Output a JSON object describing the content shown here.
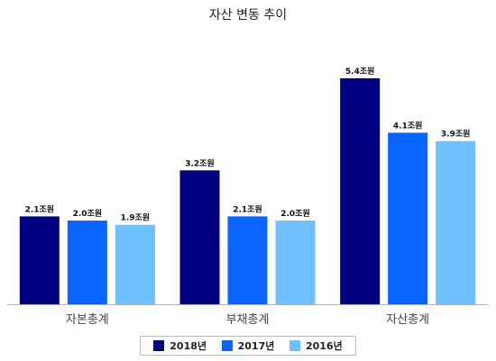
{
  "chart_data": {
    "type": "bar",
    "title": "자산 변동 추이",
    "categories": [
      "자본총계",
      "부채총계",
      "자산총계"
    ],
    "unit": "조원",
    "series": [
      {
        "name": "2018년",
        "color": "#000080",
        "values": [
          2.1,
          3.2,
          5.4
        ],
        "labels": [
          "2.1조원",
          "3.2조원",
          "5.4조원"
        ]
      },
      {
        "name": "2017년",
        "color": "#0a64ff",
        "values": [
          2.0,
          2.1,
          4.1
        ],
        "labels": [
          "2.0조원",
          "2.1조원",
          "4.1조원"
        ]
      },
      {
        "name": "2016년",
        "color": "#6ec0ff",
        "values": [
          1.9,
          2.0,
          3.9
        ],
        "labels": [
          "1.9조원",
          "2.0조원",
          "3.9조원"
        ]
      }
    ],
    "ylim": [
      0,
      5.4
    ],
    "grid": false,
    "legend": "bottom"
  }
}
